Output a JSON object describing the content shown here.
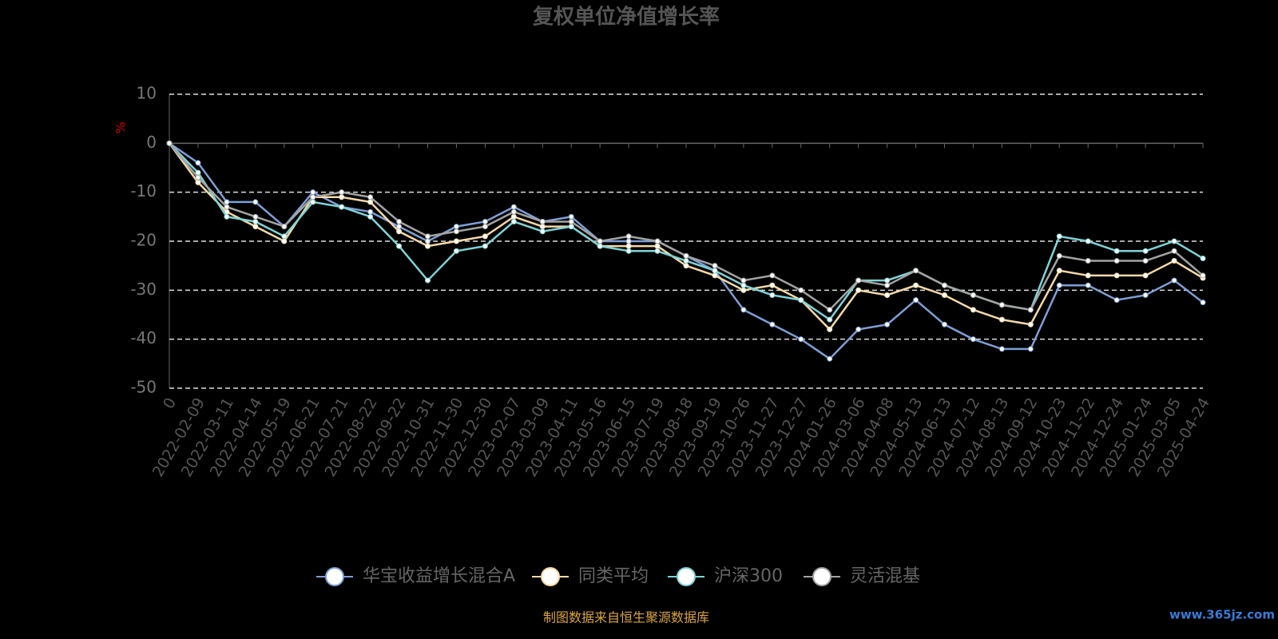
{
  "chart_data": {
    "type": "line",
    "title": "复权单位净值增长率",
    "y_label": "%",
    "source": "制图数据来自恒生聚源数据库",
    "watermark": "www.365jz.com",
    "categories": [
      "0",
      "2022-02-09",
      "2022-03-11",
      "2022-04-14",
      "2022-05-19",
      "2022-06-21",
      "2022-07-21",
      "2022-08-22",
      "2022-09-22",
      "2022-10-31",
      "2022-11-30",
      "2022-12-30",
      "2023-02-07",
      "2023-03-09",
      "2023-04-11",
      "2023-05-16",
      "2023-06-15",
      "2023-07-19",
      "2023-08-18",
      "2023-09-19",
      "2023-10-26",
      "2023-11-27",
      "2023-12-27",
      "2024-01-26",
      "2024-03-06",
      "2024-04-08",
      "2024-05-13",
      "2024-06-13",
      "2024-07-12",
      "2024-08-13",
      "2024-09-12",
      "2024-10-23",
      "2024-11-22",
      "2024-12-24",
      "2025-01-24",
      "2025-03-05",
      "2025-04-24"
    ],
    "ylim": [
      -50,
      10
    ],
    "yticks": [
      -50,
      -40,
      -30,
      -20,
      -10,
      0,
      10
    ],
    "grid": true,
    "legend": "bottom",
    "series": [
      {
        "name": "华宝收益增长混合A",
        "color": "#7e9fd6",
        "values": [
          0,
          -4,
          -12,
          -12,
          -17,
          -10,
          -13,
          -14,
          -17,
          -20,
          -17,
          -16,
          -13,
          -16,
          -15,
          -20,
          -20,
          -20,
          -23,
          -26,
          -34,
          -37,
          -40,
          -44,
          -38,
          -37,
          -32,
          -37,
          -40,
          -42,
          -42,
          -29,
          -29,
          -32,
          -31,
          -28,
          -32.5
        ]
      },
      {
        "name": "同类平均",
        "color": "#f5d9a6",
        "values": [
          0,
          -8,
          -14,
          -17,
          -20,
          -11,
          -11,
          -12,
          -18,
          -21,
          -20,
          -19,
          -15,
          -17,
          -17,
          -21,
          -21,
          -21,
          -25,
          -27,
          -30,
          -29,
          -32,
          -38,
          -30,
          -31,
          -29,
          -31,
          -34,
          -36,
          -37,
          -26,
          -27,
          -27,
          -27,
          -24,
          -27.5
        ]
      },
      {
        "name": "沪深300",
        "color": "#7fd3d6",
        "values": [
          0,
          -6,
          -15,
          -16,
          -19,
          -12,
          -13,
          -15,
          -21,
          -28,
          -22,
          -21,
          -16,
          -18,
          -17,
          -21,
          -22,
          -22,
          -24,
          -26,
          -29,
          -31,
          -32,
          -36,
          -28,
          -28,
          -26,
          -29,
          -31,
          -33,
          -34,
          -19,
          -20,
          -22,
          -22,
          -20,
          -23.5
        ]
      },
      {
        "name": "灵活混基",
        "color": "#a3a3a3",
        "values": [
          0,
          -7,
          -13,
          -15,
          -17,
          -11,
          -10,
          -11,
          -16,
          -19,
          -18,
          -17,
          -14,
          -16,
          -16,
          -20,
          -19,
          -20,
          -23,
          -25,
          -28,
          -27,
          -30,
          -34,
          -28,
          -29,
          -26,
          -29,
          -31,
          -33,
          -34,
          -23,
          -24,
          -24,
          -24,
          -22,
          -27
        ]
      }
    ]
  }
}
